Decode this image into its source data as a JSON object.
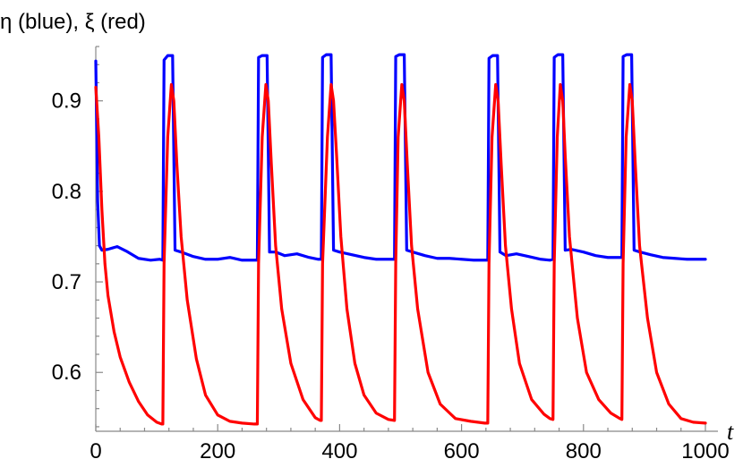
{
  "chart_data": {
    "type": "line",
    "title": "",
    "ylabel": "η (blue), ξ (red)",
    "xlabel": "t",
    "xlim": [
      0,
      1000
    ],
    "ylim": [
      0.535,
      0.96
    ],
    "x_ticks": [
      0,
      200,
      400,
      600,
      800,
      1000
    ],
    "x_tick_labels": [
      "0",
      "200",
      "400",
      "600",
      "800",
      "1000"
    ],
    "y_ticks": [
      0.6,
      0.7,
      0.8,
      0.9
    ],
    "y_tick_labels": [
      "0.6",
      "0.7",
      "0.8",
      "0.9"
    ],
    "grid": false,
    "series": [
      {
        "name": "eta",
        "color": "#0000ff",
        "x": [
          0,
          3,
          6,
          10,
          20,
          35,
          50,
          70,
          90,
          105,
          110,
          112,
          118,
          122,
          126,
          130,
          140,
          160,
          180,
          200,
          220,
          240,
          260,
          265,
          267,
          273,
          277,
          281,
          285,
          295,
          310,
          330,
          350,
          365,
          370,
          372,
          378,
          382,
          386,
          390,
          400,
          420,
          440,
          460,
          480,
          490,
          492,
          498,
          502,
          506,
          510,
          520,
          540,
          560,
          580,
          600,
          620,
          640,
          643,
          645,
          651,
          655,
          659,
          663,
          673,
          690,
          710,
          730,
          745,
          750,
          752,
          758,
          762,
          766,
          770,
          780,
          800,
          820,
          840,
          860,
          863,
          865,
          871,
          875,
          879,
          883,
          893,
          910,
          930,
          950,
          970,
          990,
          1000
        ],
        "values": [
          0.944,
          0.79,
          0.74,
          0.735,
          0.736,
          0.739,
          0.734,
          0.726,
          0.724,
          0.725,
          0.724,
          0.945,
          0.95,
          0.95,
          0.95,
          0.735,
          0.733,
          0.728,
          0.725,
          0.725,
          0.727,
          0.724,
          0.724,
          0.724,
          0.948,
          0.95,
          0.95,
          0.95,
          0.733,
          0.733,
          0.729,
          0.731,
          0.727,
          0.725,
          0.725,
          0.948,
          0.951,
          0.951,
          0.951,
          0.735,
          0.733,
          0.73,
          0.727,
          0.725,
          0.725,
          0.725,
          0.949,
          0.951,
          0.951,
          0.951,
          0.735,
          0.733,
          0.729,
          0.726,
          0.726,
          0.725,
          0.724,
          0.724,
          0.724,
          0.947,
          0.95,
          0.95,
          0.95,
          0.733,
          0.729,
          0.731,
          0.728,
          0.725,
          0.724,
          0.725,
          0.948,
          0.951,
          0.951,
          0.951,
          0.735,
          0.736,
          0.733,
          0.729,
          0.727,
          0.727,
          0.727,
          0.949,
          0.951,
          0.951,
          0.951,
          0.735,
          0.733,
          0.73,
          0.727,
          0.726,
          0.725,
          0.725,
          0.725
        ]
      },
      {
        "name": "xi",
        "color": "#ff0000",
        "x": [
          0,
          5,
          10,
          15,
          20,
          30,
          40,
          55,
          70,
          85,
          100,
          108,
          110,
          112,
          118,
          124,
          128,
          133,
          140,
          150,
          165,
          180,
          200,
          220,
          240,
          260,
          265,
          267,
          273,
          279,
          283,
          288,
          295,
          305,
          320,
          340,
          360,
          368,
          370,
          372,
          380,
          386,
          390,
          395,
          402,
          412,
          425,
          440,
          460,
          480,
          490,
          492,
          496,
          502,
          506,
          511,
          518,
          528,
          545,
          565,
          590,
          615,
          638,
          643,
          645,
          650,
          656,
          660,
          665,
          672,
          682,
          695,
          715,
          735,
          745,
          750,
          752,
          757,
          762,
          766,
          770,
          777,
          790,
          805,
          825,
          845,
          860,
          863,
          865,
          870,
          876,
          880,
          885,
          892,
          905,
          920,
          940,
          960,
          980,
          1000
        ],
        "values": [
          0.915,
          0.86,
          0.78,
          0.72,
          0.685,
          0.645,
          0.617,
          0.589,
          0.568,
          0.553,
          0.545,
          0.543,
          0.543,
          0.72,
          0.86,
          0.918,
          0.9,
          0.83,
          0.75,
          0.68,
          0.615,
          0.575,
          0.553,
          0.546,
          0.544,
          0.543,
          0.543,
          0.72,
          0.86,
          0.918,
          0.9,
          0.83,
          0.74,
          0.67,
          0.61,
          0.57,
          0.55,
          0.547,
          0.547,
          0.72,
          0.86,
          0.918,
          0.9,
          0.84,
          0.75,
          0.67,
          0.61,
          0.575,
          0.555,
          0.548,
          0.547,
          0.72,
          0.86,
          0.918,
          0.9,
          0.83,
          0.74,
          0.67,
          0.6,
          0.565,
          0.549,
          0.546,
          0.544,
          0.544,
          0.72,
          0.86,
          0.918,
          0.9,
          0.83,
          0.74,
          0.67,
          0.61,
          0.57,
          0.554,
          0.549,
          0.548,
          0.72,
          0.86,
          0.918,
          0.9,
          0.84,
          0.75,
          0.66,
          0.6,
          0.57,
          0.555,
          0.549,
          0.548,
          0.72,
          0.86,
          0.918,
          0.9,
          0.83,
          0.74,
          0.66,
          0.6,
          0.565,
          0.549,
          0.545,
          0.544
        ]
      }
    ]
  }
}
